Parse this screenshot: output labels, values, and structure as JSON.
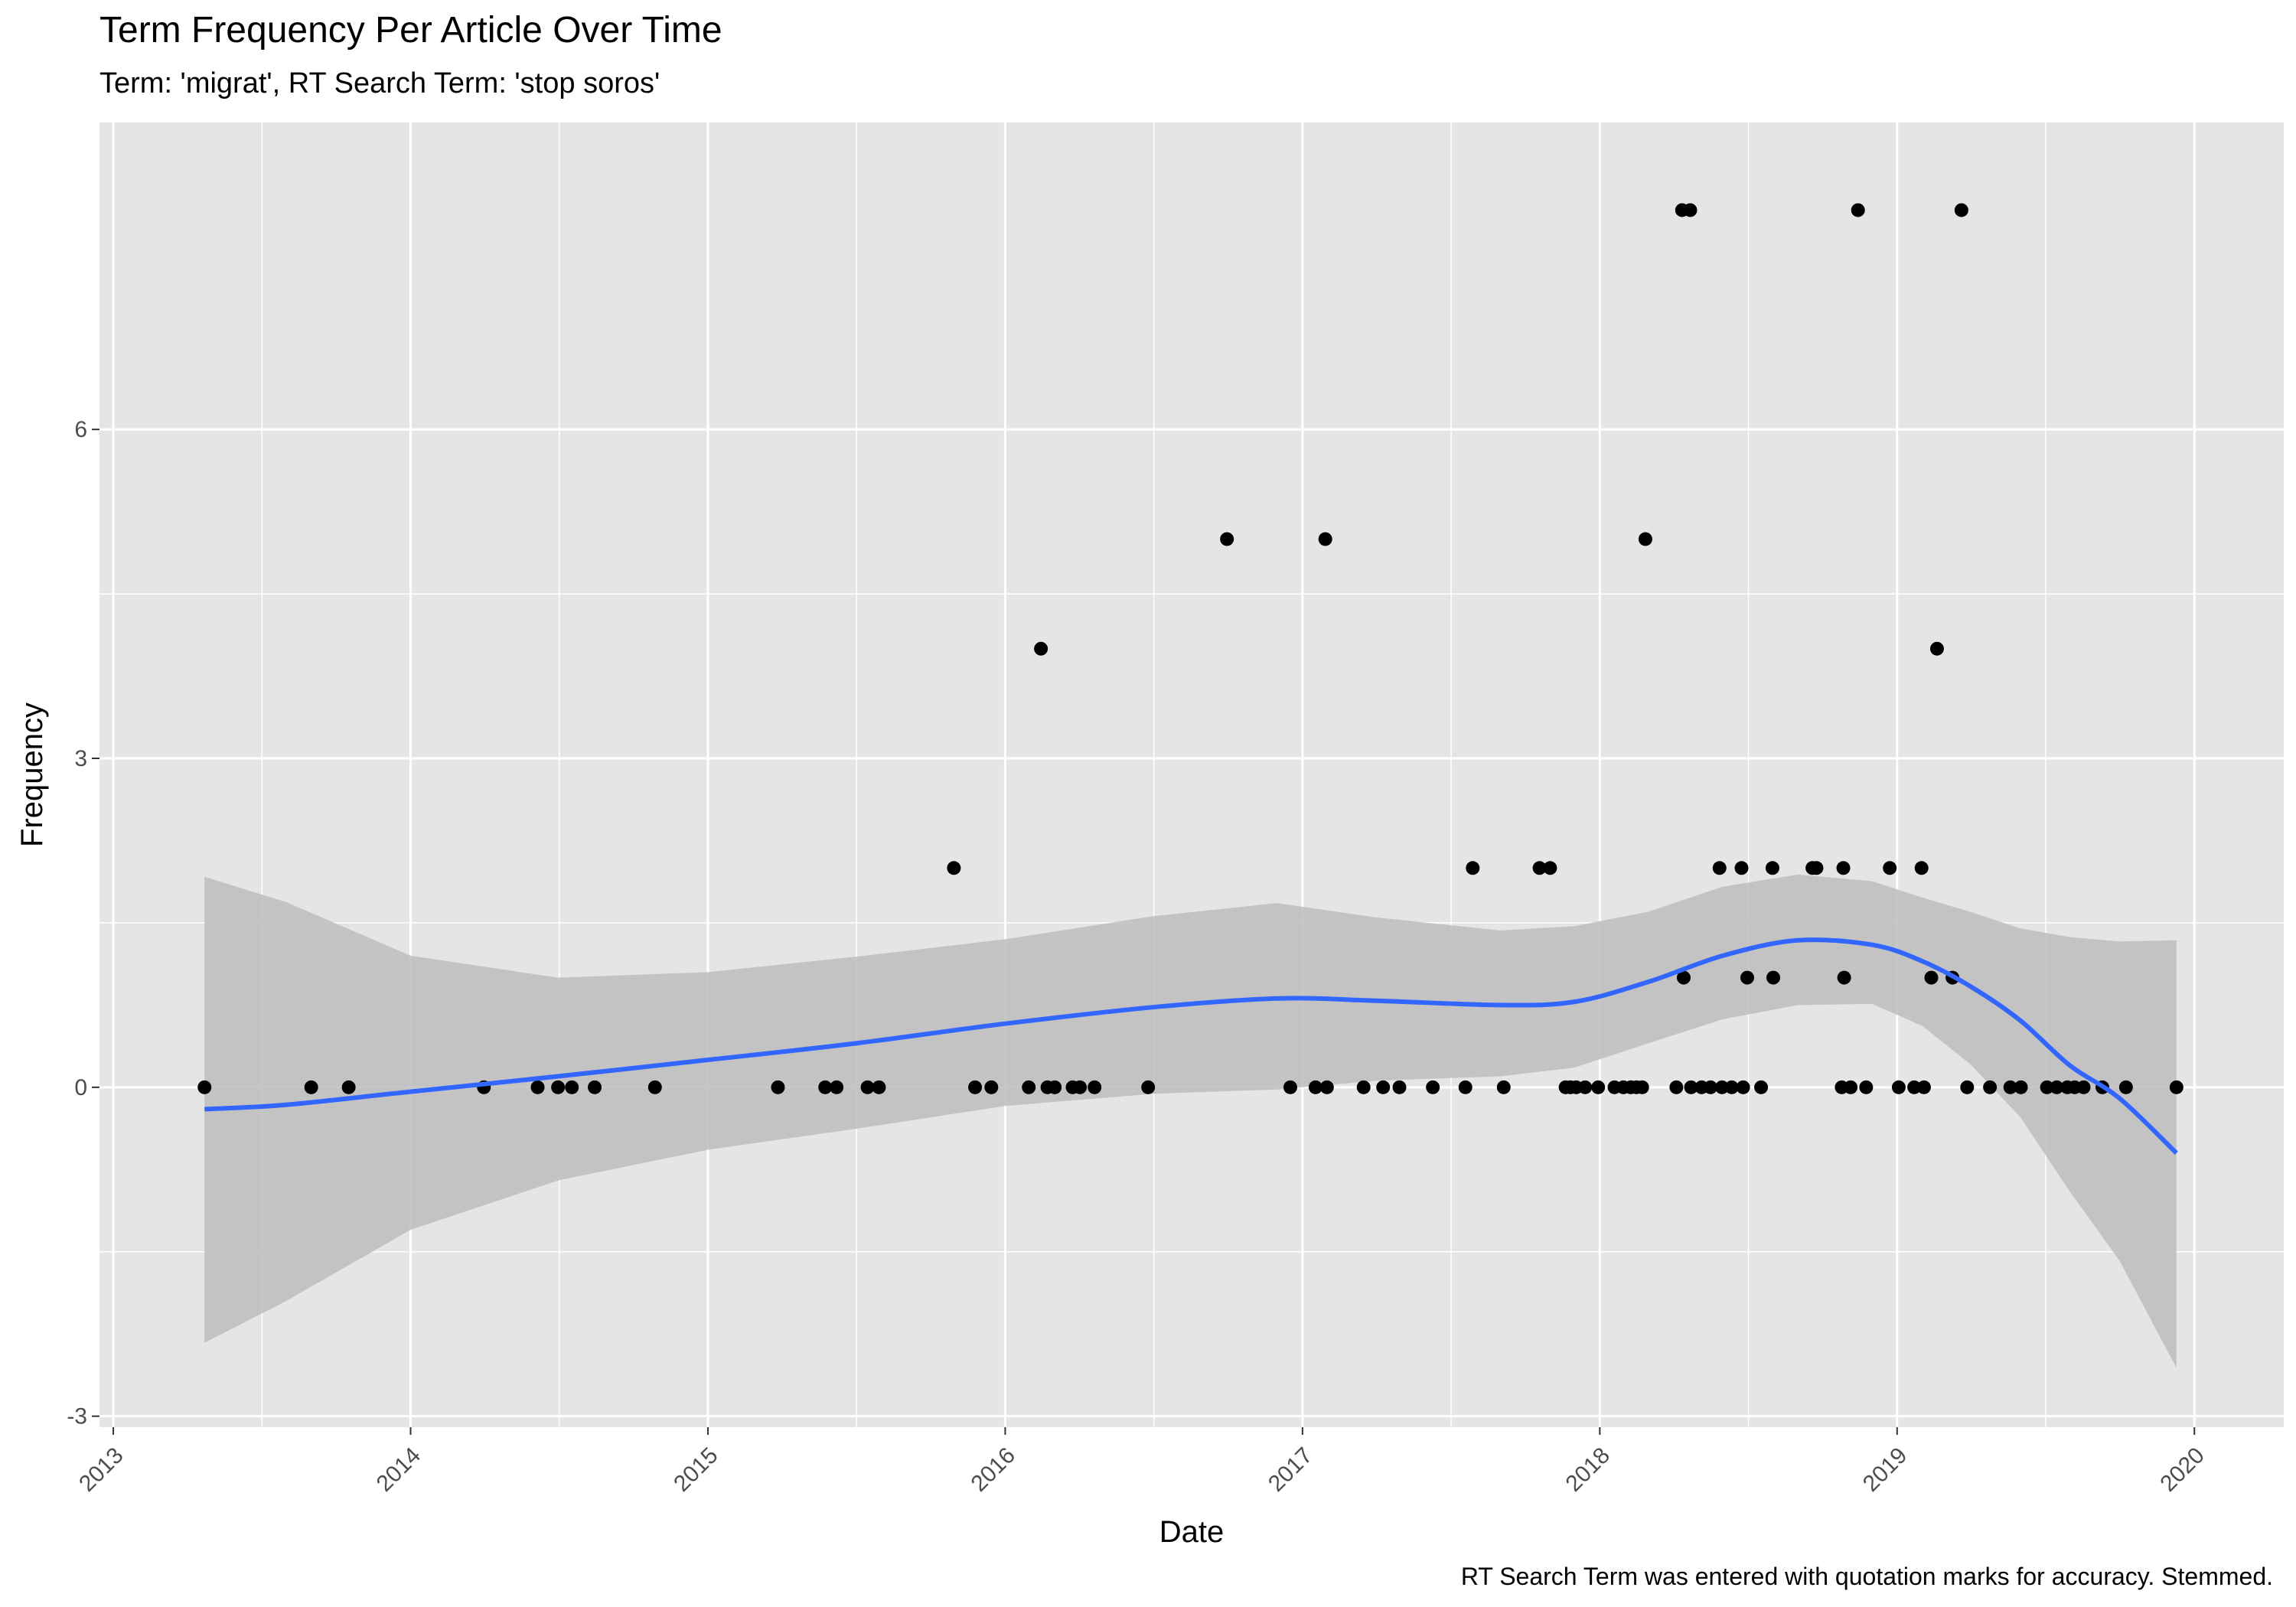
{
  "chart_data": {
    "type": "scatter",
    "title": "Term Frequency Per Article Over Time",
    "subtitle": "Term: 'migrat', RT Search Term: 'stop soros'",
    "caption": "RT Search Term was entered with quotation marks for accuracy. Stemmed.",
    "xlabel": "Date",
    "ylabel": "Frequency",
    "xlim": [
      "2012-12-15",
      "2020-04-20"
    ],
    "ylim": [
      -3.1,
      8.8
    ],
    "x_ticks": [
      2013,
      2014,
      2015,
      2016,
      2017,
      2018,
      2019,
      2020
    ],
    "y_ticks": [
      -3,
      0,
      3,
      6
    ],
    "grid": true,
    "colors": {
      "panel": "#e5e5e5",
      "grid": "#ffffff",
      "point": "#000000",
      "smooth": "#3366ff",
      "ribbon": "#bdbdbd"
    },
    "points": [
      {
        "x": "2013-04-23",
        "y": 0
      },
      {
        "x": "2013-09-01",
        "y": 0
      },
      {
        "x": "2013-10-17",
        "y": 0
      },
      {
        "x": "2014-04-01",
        "y": 0
      },
      {
        "x": "2014-06-06",
        "y": 0
      },
      {
        "x": "2014-07-01",
        "y": 0
      },
      {
        "x": "2014-07-18",
        "y": 0
      },
      {
        "x": "2014-08-15",
        "y": 0
      },
      {
        "x": "2014-10-28",
        "y": 0
      },
      {
        "x": "2015-03-28",
        "y": 0
      },
      {
        "x": "2015-05-25",
        "y": 0
      },
      {
        "x": "2015-06-08",
        "y": 0
      },
      {
        "x": "2015-07-16",
        "y": 0
      },
      {
        "x": "2015-07-30",
        "y": 0
      },
      {
        "x": "2015-10-30",
        "y": 2
      },
      {
        "x": "2015-11-25",
        "y": 0
      },
      {
        "x": "2015-12-15",
        "y": 0
      },
      {
        "x": "2016-01-30",
        "y": 0
      },
      {
        "x": "2016-02-14",
        "y": 4
      },
      {
        "x": "2016-02-22",
        "y": 0
      },
      {
        "x": "2016-03-02",
        "y": 0
      },
      {
        "x": "2016-03-24",
        "y": 0
      },
      {
        "x": "2016-04-02",
        "y": 0
      },
      {
        "x": "2016-04-20",
        "y": 0
      },
      {
        "x": "2016-06-25",
        "y": 0
      },
      {
        "x": "2016-09-30",
        "y": 5
      },
      {
        "x": "2016-12-17",
        "y": 0
      },
      {
        "x": "2017-01-17",
        "y": 0
      },
      {
        "x": "2017-01-29",
        "y": 5
      },
      {
        "x": "2017-01-31",
        "y": 0
      },
      {
        "x": "2017-03-17",
        "y": 0
      },
      {
        "x": "2017-04-10",
        "y": 0
      },
      {
        "x": "2017-04-30",
        "y": 0
      },
      {
        "x": "2017-06-10",
        "y": 0
      },
      {
        "x": "2017-07-20",
        "y": 0
      },
      {
        "x": "2017-07-29",
        "y": 2
      },
      {
        "x": "2017-09-05",
        "y": 0
      },
      {
        "x": "2017-10-19",
        "y": 2
      },
      {
        "x": "2017-11-01",
        "y": 2
      },
      {
        "x": "2017-11-20",
        "y": 0
      },
      {
        "x": "2017-11-26",
        "y": 0
      },
      {
        "x": "2017-12-03",
        "y": 0
      },
      {
        "x": "2017-12-14",
        "y": 0
      },
      {
        "x": "2017-12-30",
        "y": 0
      },
      {
        "x": "2018-01-19",
        "y": 0
      },
      {
        "x": "2018-01-30",
        "y": 0
      },
      {
        "x": "2018-02-08",
        "y": 0
      },
      {
        "x": "2018-02-15",
        "y": 0
      },
      {
        "x": "2018-02-22",
        "y": 0
      },
      {
        "x": "2018-02-26",
        "y": 5
      },
      {
        "x": "2018-04-05",
        "y": 0
      },
      {
        "x": "2018-04-12",
        "y": 8
      },
      {
        "x": "2018-04-14",
        "y": 1
      },
      {
        "x": "2018-04-22",
        "y": 8
      },
      {
        "x": "2018-04-23",
        "y": 0
      },
      {
        "x": "2018-05-06",
        "y": 0
      },
      {
        "x": "2018-05-17",
        "y": 0
      },
      {
        "x": "2018-05-28",
        "y": 2
      },
      {
        "x": "2018-05-31",
        "y": 0
      },
      {
        "x": "2018-06-12",
        "y": 0
      },
      {
        "x": "2018-06-24",
        "y": 2
      },
      {
        "x": "2018-06-26",
        "y": 0
      },
      {
        "x": "2018-07-01",
        "y": 1
      },
      {
        "x": "2018-07-18",
        "y": 0
      },
      {
        "x": "2018-08-01",
        "y": 2
      },
      {
        "x": "2018-08-02",
        "y": 1
      },
      {
        "x": "2018-09-19",
        "y": 2
      },
      {
        "x": "2018-09-24",
        "y": 2
      },
      {
        "x": "2018-10-25",
        "y": 0
      },
      {
        "x": "2018-10-27",
        "y": 2
      },
      {
        "x": "2018-10-28",
        "y": 1
      },
      {
        "x": "2018-11-05",
        "y": 0
      },
      {
        "x": "2018-11-14",
        "y": 8
      },
      {
        "x": "2018-11-24",
        "y": 0
      },
      {
        "x": "2018-12-23",
        "y": 2
      },
      {
        "x": "2019-01-03",
        "y": 0
      },
      {
        "x": "2019-01-22",
        "y": 0
      },
      {
        "x": "2019-01-31",
        "y": 2
      },
      {
        "x": "2019-02-03",
        "y": 0
      },
      {
        "x": "2019-02-12",
        "y": 1
      },
      {
        "x": "2019-02-19",
        "y": 4
      },
      {
        "x": "2019-03-10",
        "y": 1
      },
      {
        "x": "2019-03-21",
        "y": 8
      },
      {
        "x": "2019-03-28",
        "y": 0
      },
      {
        "x": "2019-04-25",
        "y": 0
      },
      {
        "x": "2019-05-20",
        "y": 0
      },
      {
        "x": "2019-06-02",
        "y": 0
      },
      {
        "x": "2019-07-04",
        "y": 0
      },
      {
        "x": "2019-07-16",
        "y": 0
      },
      {
        "x": "2019-07-29",
        "y": 0
      },
      {
        "x": "2019-08-07",
        "y": 0
      },
      {
        "x": "2019-08-18",
        "y": 0
      },
      {
        "x": "2019-09-10",
        "y": 0
      },
      {
        "x": "2019-10-09",
        "y": 0
      },
      {
        "x": "2019-12-10",
        "y": 0
      }
    ],
    "smooth": [
      {
        "x": "2013-04-23",
        "y": -0.2,
        "lo": -2.33,
        "hi": 1.92
      },
      {
        "x": "2013-08-01",
        "y": -0.16,
        "lo": -1.95,
        "hi": 1.69
      },
      {
        "x": "2014-01-01",
        "y": -0.04,
        "lo": -1.3,
        "hi": 1.2
      },
      {
        "x": "2014-07-01",
        "y": 0.1,
        "lo": -0.85,
        "hi": 1.0
      },
      {
        "x": "2015-01-01",
        "y": 0.25,
        "lo": -0.57,
        "hi": 1.05
      },
      {
        "x": "2015-07-01",
        "y": 0.4,
        "lo": -0.38,
        "hi": 1.19
      },
      {
        "x": "2016-01-01",
        "y": 0.58,
        "lo": -0.17,
        "hi": 1.35
      },
      {
        "x": "2016-07-01",
        "y": 0.73,
        "lo": -0.06,
        "hi": 1.56
      },
      {
        "x": "2016-12-01",
        "y": 0.81,
        "lo": -0.02,
        "hi": 1.68
      },
      {
        "x": "2017-04-01",
        "y": 0.79,
        "lo": 0.06,
        "hi": 1.55
      },
      {
        "x": "2017-09-01",
        "y": 0.75,
        "lo": 0.1,
        "hi": 1.43
      },
      {
        "x": "2017-12-01",
        "y": 0.78,
        "lo": 0.18,
        "hi": 1.47
      },
      {
        "x": "2018-03-01",
        "y": 0.96,
        "lo": 0.4,
        "hi": 1.6
      },
      {
        "x": "2018-06-01",
        "y": 1.2,
        "lo": 0.62,
        "hi": 1.83
      },
      {
        "x": "2018-09-01",
        "y": 1.34,
        "lo": 0.75,
        "hi": 1.94
      },
      {
        "x": "2018-12-01",
        "y": 1.3,
        "lo": 0.76,
        "hi": 1.88
      },
      {
        "x": "2019-02-01",
        "y": 1.15,
        "lo": 0.56,
        "hi": 1.73
      },
      {
        "x": "2019-04-01",
        "y": 0.92,
        "lo": 0.21,
        "hi": 1.6
      },
      {
        "x": "2019-06-01",
        "y": 0.61,
        "lo": -0.27,
        "hi": 1.45
      },
      {
        "x": "2019-08-01",
        "y": 0.2,
        "lo": -0.95,
        "hi": 1.37
      },
      {
        "x": "2019-10-01",
        "y": -0.1,
        "lo": -1.58,
        "hi": 1.33
      },
      {
        "x": "2019-12-10",
        "y": -0.6,
        "lo": -2.56,
        "hi": 1.34
      }
    ]
  }
}
